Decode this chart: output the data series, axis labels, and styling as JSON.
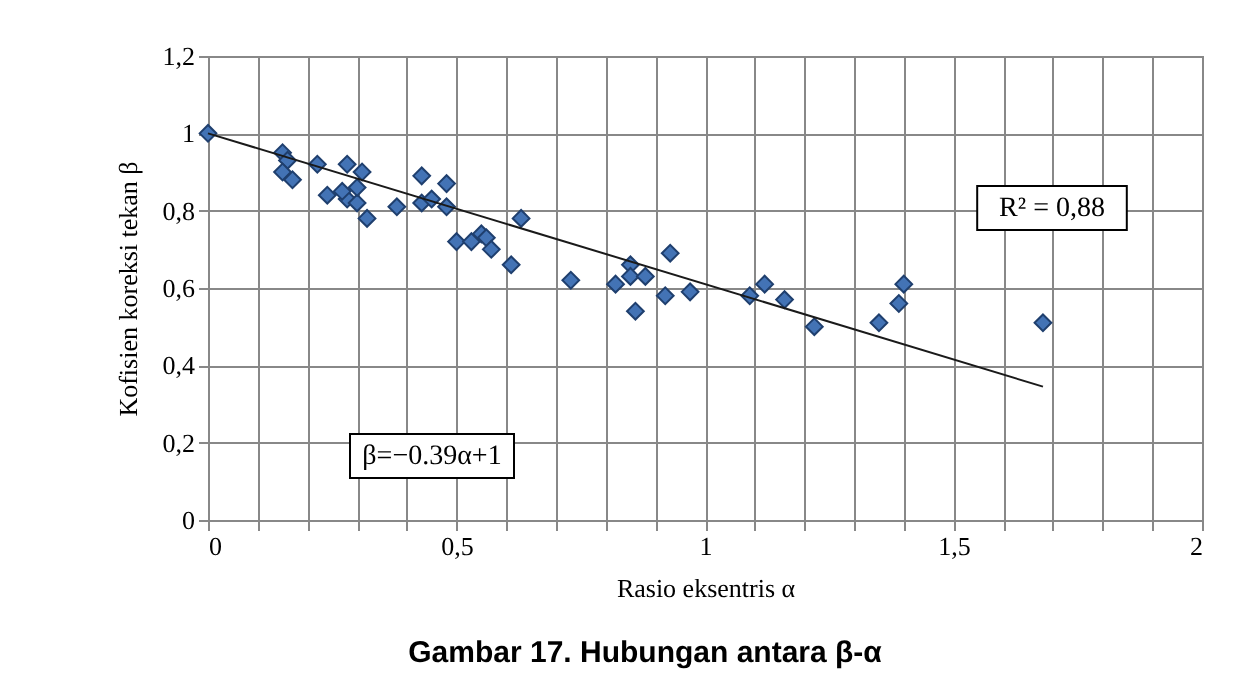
{
  "chart_data": {
    "type": "scatter",
    "xlabel": "Rasio eksentris α",
    "ylabel": "Kofisien koreksi tekan β",
    "annotations": [
      "R² = 0,88",
      "β=−0.39α+1",
      "Gambar 17. Hubungan antara β-α"
    ],
    "xlim": [
      0,
      2
    ],
    "ylim": [
      0,
      1.2
    ],
    "xticks": [
      0,
      {
        "value": 0.1,
        "label": null
      },
      {
        "value": 0.2,
        "label": null
      },
      {
        "value": 0.3,
        "label": null
      },
      {
        "value": 0.4,
        "label": null
      },
      {
        "value": 0.5,
        "label": "0,5"
      },
      {
        "value": 0.6,
        "label": null
      },
      {
        "value": 0.7,
        "label": null
      },
      {
        "value": 0.8,
        "label": null
      },
      {
        "value": 0.9,
        "label": null
      },
      1,
      {
        "value": 1.1,
        "label": null
      },
      {
        "value": 1.2,
        "label": null
      },
      {
        "value": 1.3,
        "label": null
      },
      {
        "value": 1.4,
        "label": null
      },
      {
        "value": 1.5,
        "label": "1,5"
      },
      {
        "value": 1.6,
        "label": null
      },
      {
        "value": 1.7,
        "label": null
      },
      {
        "value": 1.8,
        "label": null
      },
      {
        "value": 1.9,
        "label": null
      },
      2
    ],
    "yticks": [
      0,
      {
        "value": 0.2,
        "label": "0,2"
      },
      {
        "value": 0.4,
        "label": "0,4"
      },
      {
        "value": 0.6,
        "label": "0,6"
      },
      {
        "value": 0.8,
        "label": "0,8"
      },
      1,
      {
        "value": 1.2,
        "label": "1,2"
      }
    ],
    "grid": true,
    "marker": "diamond",
    "series": [
      {
        "color": "#4373b5",
        "x": [
          0,
          0.15,
          0.16,
          0.15,
          0.17,
          0.22,
          0.24,
          0.28,
          0.28,
          0.3,
          0.3,
          0.31,
          0.32,
          0.27,
          0.38,
          0.43,
          0.43,
          0.45,
          0.48,
          0.48,
          0.5,
          0.53,
          0.55,
          0.56,
          0.57,
          0.61,
          0.63,
          0.73,
          0.82,
          0.85,
          0.85,
          0.86,
          0.88,
          0.93,
          0.92,
          0.97,
          1.09,
          1.12,
          1.16,
          1.22,
          1.35,
          1.39,
          1.4,
          1.68
        ],
        "values": [
          1,
          0.95,
          0.93,
          0.9,
          0.88,
          0.92,
          0.84,
          0.92,
          0.83,
          0.82,
          0.86,
          0.9,
          0.78,
          0.85,
          0.81,
          0.89,
          0.82,
          0.83,
          0.87,
          0.81,
          0.72,
          0.72,
          0.74,
          0.73,
          0.7,
          0.66,
          0.78,
          0.62,
          0.61,
          0.66,
          0.63,
          0.54,
          0.63,
          0.69,
          0.58,
          0.59,
          0.58,
          0.61,
          0.57,
          0.5,
          0.51,
          0.56,
          0.61,
          0.51
        ]
      },
      {
        "type": "line",
        "marker": "none",
        "color": "#1a1a1a",
        "x": [
          0,
          1.68
        ],
        "values": [
          1,
          0.345
        ]
      }
    ]
  }
}
